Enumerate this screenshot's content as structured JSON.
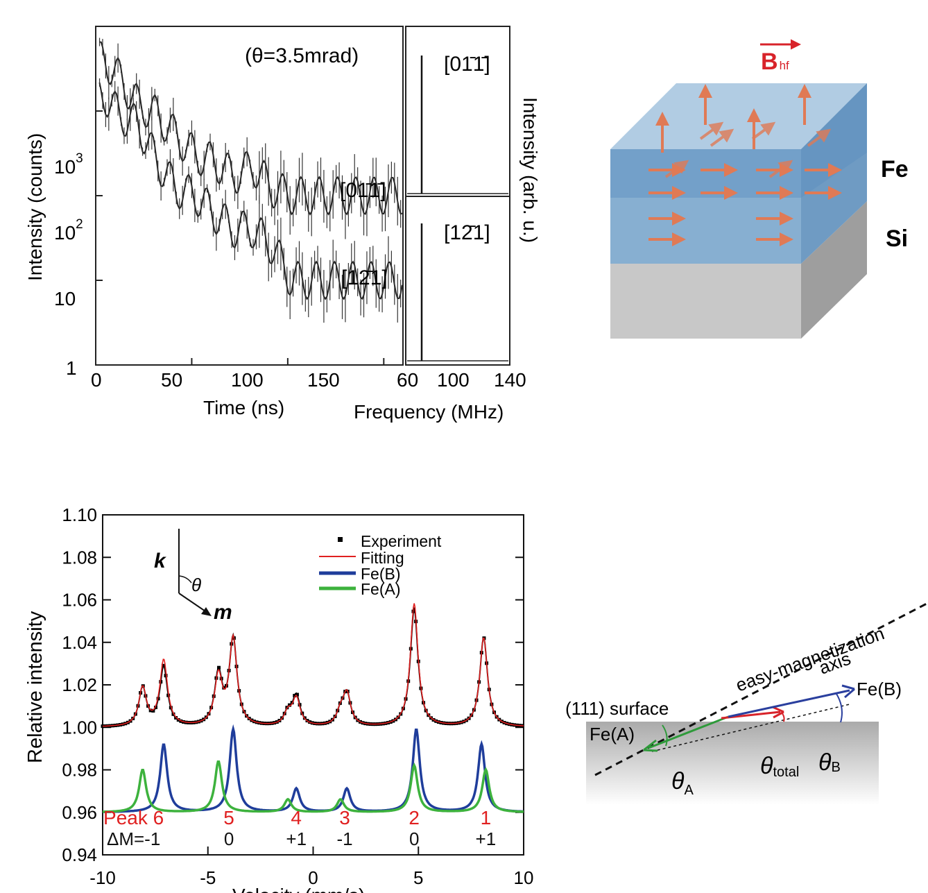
{
  "panel_tl": {
    "annotation": "(θ=3.5mrad)",
    "ylabel": "Intensity (counts)",
    "ylabel_right": "Intensity (arb. u.)",
    "xlabel_left": "Time (ns)",
    "xlabel_right": "Frequency (MHz)",
    "y_ticks": [
      {
        "base": "1",
        "exp": ""
      },
      {
        "base": "10",
        "exp": ""
      },
      {
        "base": "10",
        "exp": "2"
      },
      {
        "base": "10",
        "exp": "3"
      }
    ],
    "x_ticks_time": [
      "0",
      "50",
      "100",
      "150"
    ],
    "x_ticks_freq": [
      "60",
      "100",
      "140"
    ],
    "curve_labels": [
      "[01̄1̄]",
      "[12̄1]"
    ],
    "freq_labels": [
      "[01̄1̄]",
      "[12̄1]"
    ]
  },
  "panel_tr": {
    "field_label": "B",
    "field_sub": "hf",
    "layer_labels": [
      "Fe",
      "Si"
    ],
    "colors": {
      "fe_layer": "#6f9fc7",
      "si_layer": "#c8c8c8",
      "arrow": "#e07a55"
    }
  },
  "panel_br": {
    "surface_label": "(111) surface",
    "axis_label_1": "easy-magnetization",
    "axis_label_2": "axis",
    "fe_a": "Fe(A)",
    "fe_b": "Fe(B)",
    "theta_a": "θ",
    "theta_a_sub": "A",
    "theta_total": "θ",
    "theta_total_sub": "total",
    "theta_b": "θ",
    "theta_b_sub": "B",
    "colors": {
      "fe_a": "#2e9a3a",
      "fe_b": "#2a3f9e",
      "total": "#d8232a"
    }
  },
  "chart_data": [
    {
      "type": "line",
      "panel": "time spectra",
      "xlabel": "Time (ns)",
      "ylabel": "Intensity (counts)",
      "yscale": "log",
      "xlim": [
        0,
        160
      ],
      "ylim": [
        1,
        10000
      ],
      "annotation": "(θ=3.5mrad)",
      "series": [
        {
          "name": "[01̄1̄]",
          "x": [
            5,
            12,
            22,
            32,
            42,
            52,
            62,
            72,
            82,
            92,
            102,
            112,
            122,
            132,
            142,
            152,
            160
          ],
          "y": [
            4000,
            2500,
            1200,
            900,
            500,
            300,
            250,
            170,
            220,
            120,
            100,
            100,
            100,
            100,
            100,
            100,
            100
          ]
        },
        {
          "name": "[12̄1]",
          "x": [
            5,
            12,
            22,
            32,
            42,
            52,
            62,
            72,
            82,
            92,
            102,
            112,
            122,
            132,
            142,
            152,
            160
          ],
          "y": [
            1500,
            900,
            700,
            250,
            120,
            100,
            60,
            40,
            40,
            25,
            10,
            10,
            10,
            10,
            10,
            10,
            10
          ]
        }
      ]
    },
    {
      "type": "line",
      "panel": "frequency spectra",
      "xlabel": "Frequency (MHz)",
      "ylabel": "Intensity (arb. u.)",
      "xlim": [
        40,
        140
      ],
      "series": [
        {
          "name": "[01̄1̄]",
          "x": [
            40,
            59,
            62,
            65,
            140
          ],
          "y": [
            0,
            0,
            1,
            0,
            0
          ]
        },
        {
          "name": "[12̄1]",
          "x": [
            40,
            59,
            62,
            65,
            140
          ],
          "y": [
            0,
            0,
            1,
            0,
            0
          ]
        }
      ]
    },
    {
      "type": "line",
      "panel": "Mossbauer spectrum",
      "xlabel": "Velocity (mm/s)",
      "ylabel": "Relative intensity",
      "xlim": [
        -10,
        10
      ],
      "ylim": [
        0.94,
        1.1
      ],
      "x_ticks": [
        "-10",
        "-5",
        "0",
        "5",
        "10"
      ],
      "y_ticks": [
        "0.94",
        "0.96",
        "0.98",
        "1.00",
        "1.02",
        "1.04",
        "1.06",
        "1.08",
        "1.10"
      ],
      "inset": {
        "k": "k",
        "m": "m",
        "theta": "θ"
      },
      "legend": [
        "Experiment",
        "Fitting",
        "Fe(B)",
        "Fe(A)"
      ],
      "legend_placement": "top-right",
      "peak_labels": [
        "Peak 6",
        "5",
        "4",
        "3",
        "2",
        "1"
      ],
      "dm_prefix": "ΔM=",
      "dm_values": [
        "-1",
        "0",
        "+1",
        "-1",
        "0",
        "+1"
      ],
      "peak_positions": [
        -8.1,
        -7.1,
        -4.5,
        -3.8,
        -1.2,
        -0.8,
        1.3,
        1.6,
        4.8,
        4.9,
        8.0,
        8.2
      ],
      "series": [
        {
          "name": "Experiment",
          "color": "#000000",
          "baseline": 1.0,
          "peaks": [
            [
              -8.1,
              0.018
            ],
            [
              -7.1,
              0.028
            ],
            [
              -4.5,
              0.024
            ],
            [
              -3.8,
              0.041
            ],
            [
              -1.2,
              0.006
            ],
            [
              -0.8,
              0.014
            ],
            [
              1.3,
              0.006
            ],
            [
              1.6,
              0.015
            ],
            [
              4.8,
              0.056
            ],
            [
              8.1,
              0.042
            ]
          ]
        },
        {
          "name": "Fitting",
          "color": "#e02020",
          "baseline": 1.0,
          "peaks": [
            [
              -8.1,
              0.018
            ],
            [
              -7.1,
              0.031
            ],
            [
              -4.5,
              0.023
            ],
            [
              -3.8,
              0.041
            ],
            [
              -1.2,
              0.006
            ],
            [
              -0.8,
              0.013
            ],
            [
              1.3,
              0.006
            ],
            [
              1.6,
              0.015
            ],
            [
              4.8,
              0.058
            ],
            [
              8.1,
              0.042
            ]
          ]
        },
        {
          "name": "Fe(B)",
          "color": "#1f3d9b",
          "baseline": 0.96,
          "peaks": [
            [
              -7.1,
              0.032
            ],
            [
              -3.8,
              0.039
            ],
            [
              -0.8,
              0.011
            ],
            [
              1.6,
              0.011
            ],
            [
              4.9,
              0.039
            ],
            [
              8.0,
              0.032
            ]
          ]
        },
        {
          "name": "Fe(A)",
          "color": "#3db23d",
          "baseline": 0.96,
          "peaks": [
            [
              -8.1,
              0.02
            ],
            [
              -4.5,
              0.024
            ],
            [
              -1.2,
              0.006
            ],
            [
              1.3,
              0.006
            ],
            [
              4.8,
              0.022
            ],
            [
              8.2,
              0.02
            ]
          ]
        }
      ]
    }
  ]
}
